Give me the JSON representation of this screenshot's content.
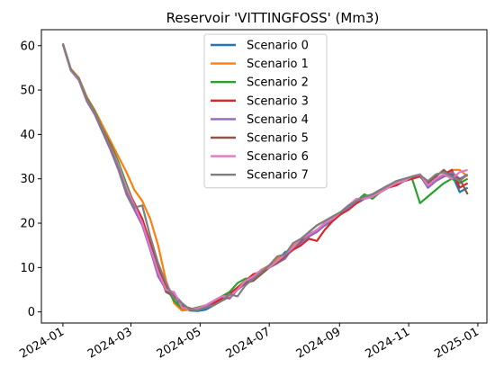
{
  "chart_data": {
    "type": "line",
    "title": "Reservoir 'VITTINGFOSS' (Mm3)",
    "xlabel": "",
    "ylabel": "",
    "xlim": [
      "2023-12-13",
      "2025-01-09"
    ],
    "ylim": [
      -2.5,
      63.6
    ],
    "x_ticks": [
      "2024-01-01",
      "2024-03-01",
      "2024-05-01",
      "2024-07-01",
      "2024-09-01",
      "2024-11-01",
      "2025-01-01"
    ],
    "x_tick_labels": [
      "2024-01",
      "2024-03",
      "2024-05",
      "2024-07",
      "2024-09",
      "2024-11",
      "2025-01"
    ],
    "y_ticks": [
      0,
      10,
      20,
      30,
      40,
      50,
      60
    ],
    "y_tick_labels": [
      "0",
      "10",
      "20",
      "30",
      "40",
      "50",
      "60"
    ],
    "grid": false,
    "legend_position": "upper-center",
    "series": [
      {
        "name": "Scenario 0",
        "color": "#1f77b4",
        "x": [
          "2024-01-01",
          "2024-01-08",
          "2024-01-15",
          "2024-01-22",
          "2024-01-29",
          "2024-02-05",
          "2024-02-12",
          "2024-02-19",
          "2024-02-26",
          "2024-03-04",
          "2024-03-11",
          "2024-03-18",
          "2024-03-25",
          "2024-04-01",
          "2024-04-08",
          "2024-04-15",
          "2024-04-22",
          "2024-04-29",
          "2024-05-06",
          "2024-05-13",
          "2024-05-20",
          "2024-05-27",
          "2024-06-03",
          "2024-06-10",
          "2024-06-17",
          "2024-06-24",
          "2024-07-01",
          "2024-07-08",
          "2024-07-15",
          "2024-07-22",
          "2024-07-29",
          "2024-08-05",
          "2024-08-12",
          "2024-08-19",
          "2024-08-26",
          "2024-09-02",
          "2024-09-09",
          "2024-09-16",
          "2024-09-23",
          "2024-09-30",
          "2024-10-07",
          "2024-10-14",
          "2024-10-21",
          "2024-10-28",
          "2024-11-04",
          "2024-11-11",
          "2024-11-18",
          "2024-11-25",
          "2024-12-02",
          "2024-12-09",
          "2024-12-16",
          "2024-12-23"
        ],
        "values": [
          60.3,
          54.5,
          52.5,
          48.0,
          45.0,
          41.0,
          37.5,
          33.5,
          28.5,
          24.0,
          20.0,
          15.0,
          10.0,
          5.0,
          3.5,
          1.0,
          0.3,
          0.2,
          0.5,
          1.5,
          2.5,
          3.5,
          5.0,
          6.5,
          7.5,
          9.0,
          10.5,
          11.5,
          13.5,
          14.0,
          15.0,
          17.0,
          18.5,
          19.5,
          21.0,
          22.0,
          23.5,
          24.5,
          25.5,
          26.5,
          27.5,
          28.0,
          29.0,
          29.5,
          30.5,
          30.8,
          28.0,
          29.5,
          30.5,
          31.0,
          27.0,
          28.0
        ]
      },
      {
        "name": "Scenario 1",
        "color": "#ff7f0e",
        "x": [
          "2024-01-01",
          "2024-01-08",
          "2024-01-15",
          "2024-01-22",
          "2024-01-29",
          "2024-02-05",
          "2024-02-12",
          "2024-02-19",
          "2024-02-26",
          "2024-03-04",
          "2024-03-11",
          "2024-03-18",
          "2024-03-25",
          "2024-04-01",
          "2024-04-08",
          "2024-04-15",
          "2024-04-22",
          "2024-04-29",
          "2024-05-06",
          "2024-05-13",
          "2024-05-20",
          "2024-05-27",
          "2024-06-03",
          "2024-06-10",
          "2024-06-17",
          "2024-06-24",
          "2024-07-01",
          "2024-07-08",
          "2024-07-15",
          "2024-07-22",
          "2024-07-29",
          "2024-08-05",
          "2024-08-12",
          "2024-08-19",
          "2024-08-26",
          "2024-09-02",
          "2024-09-09",
          "2024-09-16",
          "2024-09-23",
          "2024-09-30",
          "2024-10-07",
          "2024-10-14",
          "2024-10-21",
          "2024-10-28",
          "2024-11-04",
          "2024-11-11",
          "2024-11-18",
          "2024-11-25",
          "2024-12-02",
          "2024-12-09",
          "2024-12-16",
          "2024-12-23"
        ],
        "values": [
          60.5,
          54.8,
          52.8,
          48.5,
          45.5,
          42.0,
          38.5,
          35.0,
          31.5,
          27.5,
          25.0,
          21.0,
          15.0,
          7.0,
          2.0,
          0.3,
          0.5,
          0.8,
          1.5,
          2.0,
          3.0,
          4.0,
          5.5,
          7.0,
          8.0,
          9.5,
          10.5,
          12.0,
          13.0,
          15.0,
          16.0,
          17.5,
          18.5,
          20.0,
          21.0,
          22.5,
          23.5,
          25.0,
          26.0,
          26.5,
          27.5,
          28.5,
          29.0,
          29.5,
          30.5,
          31.0,
          29.0,
          30.0,
          31.0,
          32.0,
          32.0,
          30.5
        ]
      },
      {
        "name": "Scenario 2",
        "color": "#2ca02c",
        "x": [
          "2024-01-01",
          "2024-01-08",
          "2024-01-15",
          "2024-01-22",
          "2024-01-29",
          "2024-02-05",
          "2024-02-12",
          "2024-02-19",
          "2024-02-26",
          "2024-03-04",
          "2024-03-11",
          "2024-03-18",
          "2024-03-25",
          "2024-04-01",
          "2024-04-08",
          "2024-04-15",
          "2024-04-22",
          "2024-04-29",
          "2024-05-06",
          "2024-05-13",
          "2024-05-20",
          "2024-05-27",
          "2024-06-03",
          "2024-06-10",
          "2024-06-17",
          "2024-06-24",
          "2024-07-01",
          "2024-07-08",
          "2024-07-15",
          "2024-07-22",
          "2024-07-29",
          "2024-08-05",
          "2024-08-12",
          "2024-08-19",
          "2024-08-26",
          "2024-09-02",
          "2024-09-09",
          "2024-09-16",
          "2024-09-23",
          "2024-09-30",
          "2024-10-07",
          "2024-10-14",
          "2024-10-21",
          "2024-10-28",
          "2024-11-04",
          "2024-11-11",
          "2024-11-18",
          "2024-11-25",
          "2024-12-02",
          "2024-12-09",
          "2024-12-16",
          "2024-12-23"
        ],
        "values": [
          60.4,
          54.6,
          52.6,
          48.2,
          45.2,
          41.2,
          37.8,
          33.8,
          28.8,
          24.2,
          20.5,
          15.5,
          9.5,
          5.5,
          2.5,
          0.8,
          0.6,
          1.0,
          1.5,
          2.5,
          3.5,
          4.5,
          6.5,
          7.5,
          7.5,
          9.5,
          10.0,
          11.5,
          12.5,
          14.0,
          15.5,
          17.0,
          18.5,
          19.5,
          20.5,
          22.0,
          23.5,
          25.0,
          26.5,
          25.5,
          27.0,
          28.0,
          29.0,
          29.5,
          30.0,
          24.5,
          26.0,
          27.5,
          29.0,
          30.0,
          29.0,
          30.0
        ]
      },
      {
        "name": "Scenario 3",
        "color": "#d62728",
        "x": [
          "2024-01-01",
          "2024-01-08",
          "2024-01-15",
          "2024-01-22",
          "2024-01-29",
          "2024-02-05",
          "2024-02-12",
          "2024-02-19",
          "2024-02-26",
          "2024-03-04",
          "2024-03-11",
          "2024-03-18",
          "2024-03-25",
          "2024-04-01",
          "2024-04-08",
          "2024-04-15",
          "2024-04-22",
          "2024-04-29",
          "2024-05-06",
          "2024-05-13",
          "2024-05-20",
          "2024-05-27",
          "2024-06-03",
          "2024-06-10",
          "2024-06-17",
          "2024-06-24",
          "2024-07-01",
          "2024-07-08",
          "2024-07-15",
          "2024-07-22",
          "2024-07-29",
          "2024-08-05",
          "2024-08-12",
          "2024-08-19",
          "2024-08-26",
          "2024-09-02",
          "2024-09-09",
          "2024-09-16",
          "2024-09-23",
          "2024-09-30",
          "2024-10-07",
          "2024-10-14",
          "2024-10-21",
          "2024-10-28",
          "2024-11-04",
          "2024-11-11",
          "2024-11-18",
          "2024-11-25",
          "2024-12-02",
          "2024-12-09",
          "2024-12-16",
          "2024-12-23"
        ],
        "values": [
          60.3,
          54.5,
          52.4,
          48.0,
          45.0,
          41.0,
          37.5,
          33.0,
          28.0,
          24.5,
          21.0,
          15.5,
          10.5,
          6.0,
          3.5,
          1.5,
          0.5,
          0.6,
          1.0,
          2.0,
          3.0,
          4.0,
          5.5,
          7.0,
          8.5,
          9.0,
          10.5,
          11.0,
          12.5,
          14.0,
          15.0,
          16.5,
          16.0,
          18.5,
          20.5,
          22.0,
          23.0,
          24.5,
          25.5,
          26.0,
          27.0,
          28.0,
          28.5,
          29.5,
          30.0,
          30.5,
          28.5,
          30.0,
          31.0,
          32.0,
          28.0,
          29.0
        ]
      },
      {
        "name": "Scenario 4",
        "color": "#9467bd",
        "x": [
          "2024-01-01",
          "2024-01-08",
          "2024-01-15",
          "2024-01-22",
          "2024-01-29",
          "2024-02-05",
          "2024-02-12",
          "2024-02-19",
          "2024-02-26",
          "2024-03-04",
          "2024-03-11",
          "2024-03-18",
          "2024-03-25",
          "2024-04-01",
          "2024-04-08",
          "2024-04-15",
          "2024-04-22",
          "2024-04-29",
          "2024-05-06",
          "2024-05-13",
          "2024-05-20",
          "2024-05-27",
          "2024-06-03",
          "2024-06-10",
          "2024-06-17",
          "2024-06-24",
          "2024-07-01",
          "2024-07-08",
          "2024-07-15",
          "2024-07-22",
          "2024-07-29",
          "2024-08-05",
          "2024-08-12",
          "2024-08-19",
          "2024-08-26",
          "2024-09-02",
          "2024-09-09",
          "2024-09-16",
          "2024-09-23",
          "2024-09-30",
          "2024-10-07",
          "2024-10-14",
          "2024-10-21",
          "2024-10-28",
          "2024-11-04",
          "2024-11-11",
          "2024-11-18",
          "2024-11-25",
          "2024-12-02",
          "2024-12-09",
          "2024-12-16",
          "2024-12-23"
        ],
        "values": [
          60.2,
          54.4,
          52.2,
          47.5,
          44.5,
          40.5,
          36.5,
          32.0,
          26.5,
          23.0,
          19.5,
          14.0,
          8.0,
          5.0,
          4.0,
          2.0,
          0.5,
          0.5,
          1.0,
          2.5,
          3.5,
          3.0,
          5.0,
          7.0,
          7.5,
          9.5,
          10.0,
          11.0,
          12.0,
          14.5,
          15.5,
          17.0,
          18.0,
          19.5,
          21.0,
          22.5,
          23.5,
          25.0,
          25.5,
          26.0,
          27.5,
          28.5,
          29.0,
          29.5,
          30.5,
          31.0,
          28.0,
          29.5,
          30.5,
          31.5,
          30.0,
          31.0
        ]
      },
      {
        "name": "Scenario 5",
        "color": "#8c564b",
        "x": [
          "2024-01-01",
          "2024-01-08",
          "2024-01-15",
          "2024-01-22",
          "2024-01-29",
          "2024-02-05",
          "2024-02-12",
          "2024-02-19",
          "2024-02-26",
          "2024-03-04",
          "2024-03-11",
          "2024-03-18",
          "2024-03-25",
          "2024-04-01",
          "2024-04-08",
          "2024-04-15",
          "2024-04-22",
          "2024-04-29",
          "2024-05-06",
          "2024-05-13",
          "2024-05-20",
          "2024-05-27",
          "2024-06-03",
          "2024-06-10",
          "2024-06-17",
          "2024-06-24",
          "2024-07-01",
          "2024-07-08",
          "2024-07-15",
          "2024-07-22",
          "2024-07-29",
          "2024-08-05",
          "2024-08-12",
          "2024-08-19",
          "2024-08-26",
          "2024-09-02",
          "2024-09-09",
          "2024-09-16",
          "2024-09-23",
          "2024-09-30",
          "2024-10-07",
          "2024-10-14",
          "2024-10-21",
          "2024-10-28",
          "2024-11-04",
          "2024-11-11",
          "2024-11-18",
          "2024-11-25",
          "2024-12-02",
          "2024-12-09",
          "2024-12-16",
          "2024-12-23"
        ],
        "values": [
          60.4,
          54.6,
          52.5,
          47.8,
          44.8,
          40.8,
          37.0,
          33.0,
          27.5,
          24.0,
          20.0,
          15.0,
          9.5,
          4.5,
          3.5,
          1.5,
          0.8,
          0.5,
          1.0,
          1.5,
          2.5,
          3.5,
          5.0,
          6.5,
          7.0,
          8.5,
          10.0,
          11.0,
          12.5,
          14.5,
          16.0,
          18.0,
          19.5,
          20.5,
          21.5,
          22.5,
          24.0,
          25.0,
          26.0,
          26.5,
          27.5,
          28.5,
          29.0,
          29.5,
          30.5,
          31.0,
          29.0,
          30.5,
          32.0,
          30.5,
          30.0,
          26.5
        ]
      },
      {
        "name": "Scenario 6",
        "color": "#e377c2",
        "x": [
          "2024-01-01",
          "2024-01-08",
          "2024-01-15",
          "2024-01-22",
          "2024-01-29",
          "2024-02-05",
          "2024-02-12",
          "2024-02-19",
          "2024-02-26",
          "2024-03-04",
          "2024-03-11",
          "2024-03-18",
          "2024-03-25",
          "2024-04-01",
          "2024-04-08",
          "2024-04-15",
          "2024-04-22",
          "2024-04-29",
          "2024-05-06",
          "2024-05-13",
          "2024-05-20",
          "2024-05-27",
          "2024-06-03",
          "2024-06-10",
          "2024-06-17",
          "2024-06-24",
          "2024-07-01",
          "2024-07-08",
          "2024-07-15",
          "2024-07-22",
          "2024-07-29",
          "2024-08-05",
          "2024-08-12",
          "2024-08-19",
          "2024-08-26",
          "2024-09-02",
          "2024-09-09",
          "2024-09-16",
          "2024-09-23",
          "2024-09-30",
          "2024-10-07",
          "2024-10-14",
          "2024-10-21",
          "2024-10-28",
          "2024-11-04",
          "2024-11-11",
          "2024-11-18",
          "2024-11-25",
          "2024-12-02",
          "2024-12-09",
          "2024-12-16",
          "2024-12-23"
        ],
        "values": [
          60.3,
          54.5,
          52.4,
          47.9,
          44.9,
          41.0,
          37.2,
          33.2,
          28.0,
          24.0,
          20.0,
          14.5,
          9.0,
          5.0,
          4.5,
          1.0,
          0.5,
          0.8,
          1.5,
          2.5,
          3.5,
          3.5,
          5.0,
          7.0,
          8.0,
          9.5,
          10.0,
          11.5,
          13.0,
          14.5,
          16.5,
          17.5,
          18.5,
          20.0,
          21.0,
          22.5,
          24.0,
          25.5,
          25.5,
          26.0,
          27.0,
          28.0,
          29.0,
          29.5,
          30.5,
          31.0,
          28.5,
          30.0,
          31.0,
          30.0,
          31.5,
          32.0
        ]
      },
      {
        "name": "Scenario 7",
        "color": "#7f7f7f",
        "x": [
          "2024-01-01",
          "2024-01-08",
          "2024-01-15",
          "2024-01-22",
          "2024-01-29",
          "2024-02-05",
          "2024-02-12",
          "2024-02-19",
          "2024-02-26",
          "2024-03-04",
          "2024-03-11",
          "2024-03-18",
          "2024-03-25",
          "2024-04-01",
          "2024-04-08",
          "2024-04-15",
          "2024-04-22",
          "2024-04-29",
          "2024-05-06",
          "2024-05-13",
          "2024-05-20",
          "2024-05-27",
          "2024-06-03",
          "2024-06-10",
          "2024-06-17",
          "2024-06-24",
          "2024-07-01",
          "2024-07-08",
          "2024-07-15",
          "2024-07-22",
          "2024-07-29",
          "2024-08-05",
          "2024-08-12",
          "2024-08-19",
          "2024-08-26",
          "2024-09-02",
          "2024-09-09",
          "2024-09-16",
          "2024-09-23",
          "2024-09-30",
          "2024-10-07",
          "2024-10-14",
          "2024-10-21",
          "2024-10-28",
          "2024-11-04",
          "2024-11-11",
          "2024-11-18",
          "2024-11-25",
          "2024-12-02",
          "2024-12-09",
          "2024-12-16",
          "2024-12-23"
        ],
        "values": [
          60.5,
          54.6,
          52.6,
          48.0,
          45.0,
          41.0,
          37.0,
          32.5,
          27.0,
          23.5,
          24.0,
          17.0,
          11.0,
          6.5,
          3.0,
          2.0,
          0.5,
          0.4,
          1.0,
          1.5,
          2.5,
          4.0,
          3.5,
          6.0,
          7.5,
          9.0,
          10.5,
          12.5,
          13.0,
          15.5,
          16.5,
          18.0,
          19.5,
          20.5,
          21.5,
          22.5,
          24.0,
          25.0,
          26.0,
          26.5,
          27.5,
          28.5,
          29.5,
          30.0,
          30.5,
          30.8,
          29.5,
          31.0,
          31.5,
          30.5,
          29.5,
          31.0
        ]
      }
    ]
  }
}
